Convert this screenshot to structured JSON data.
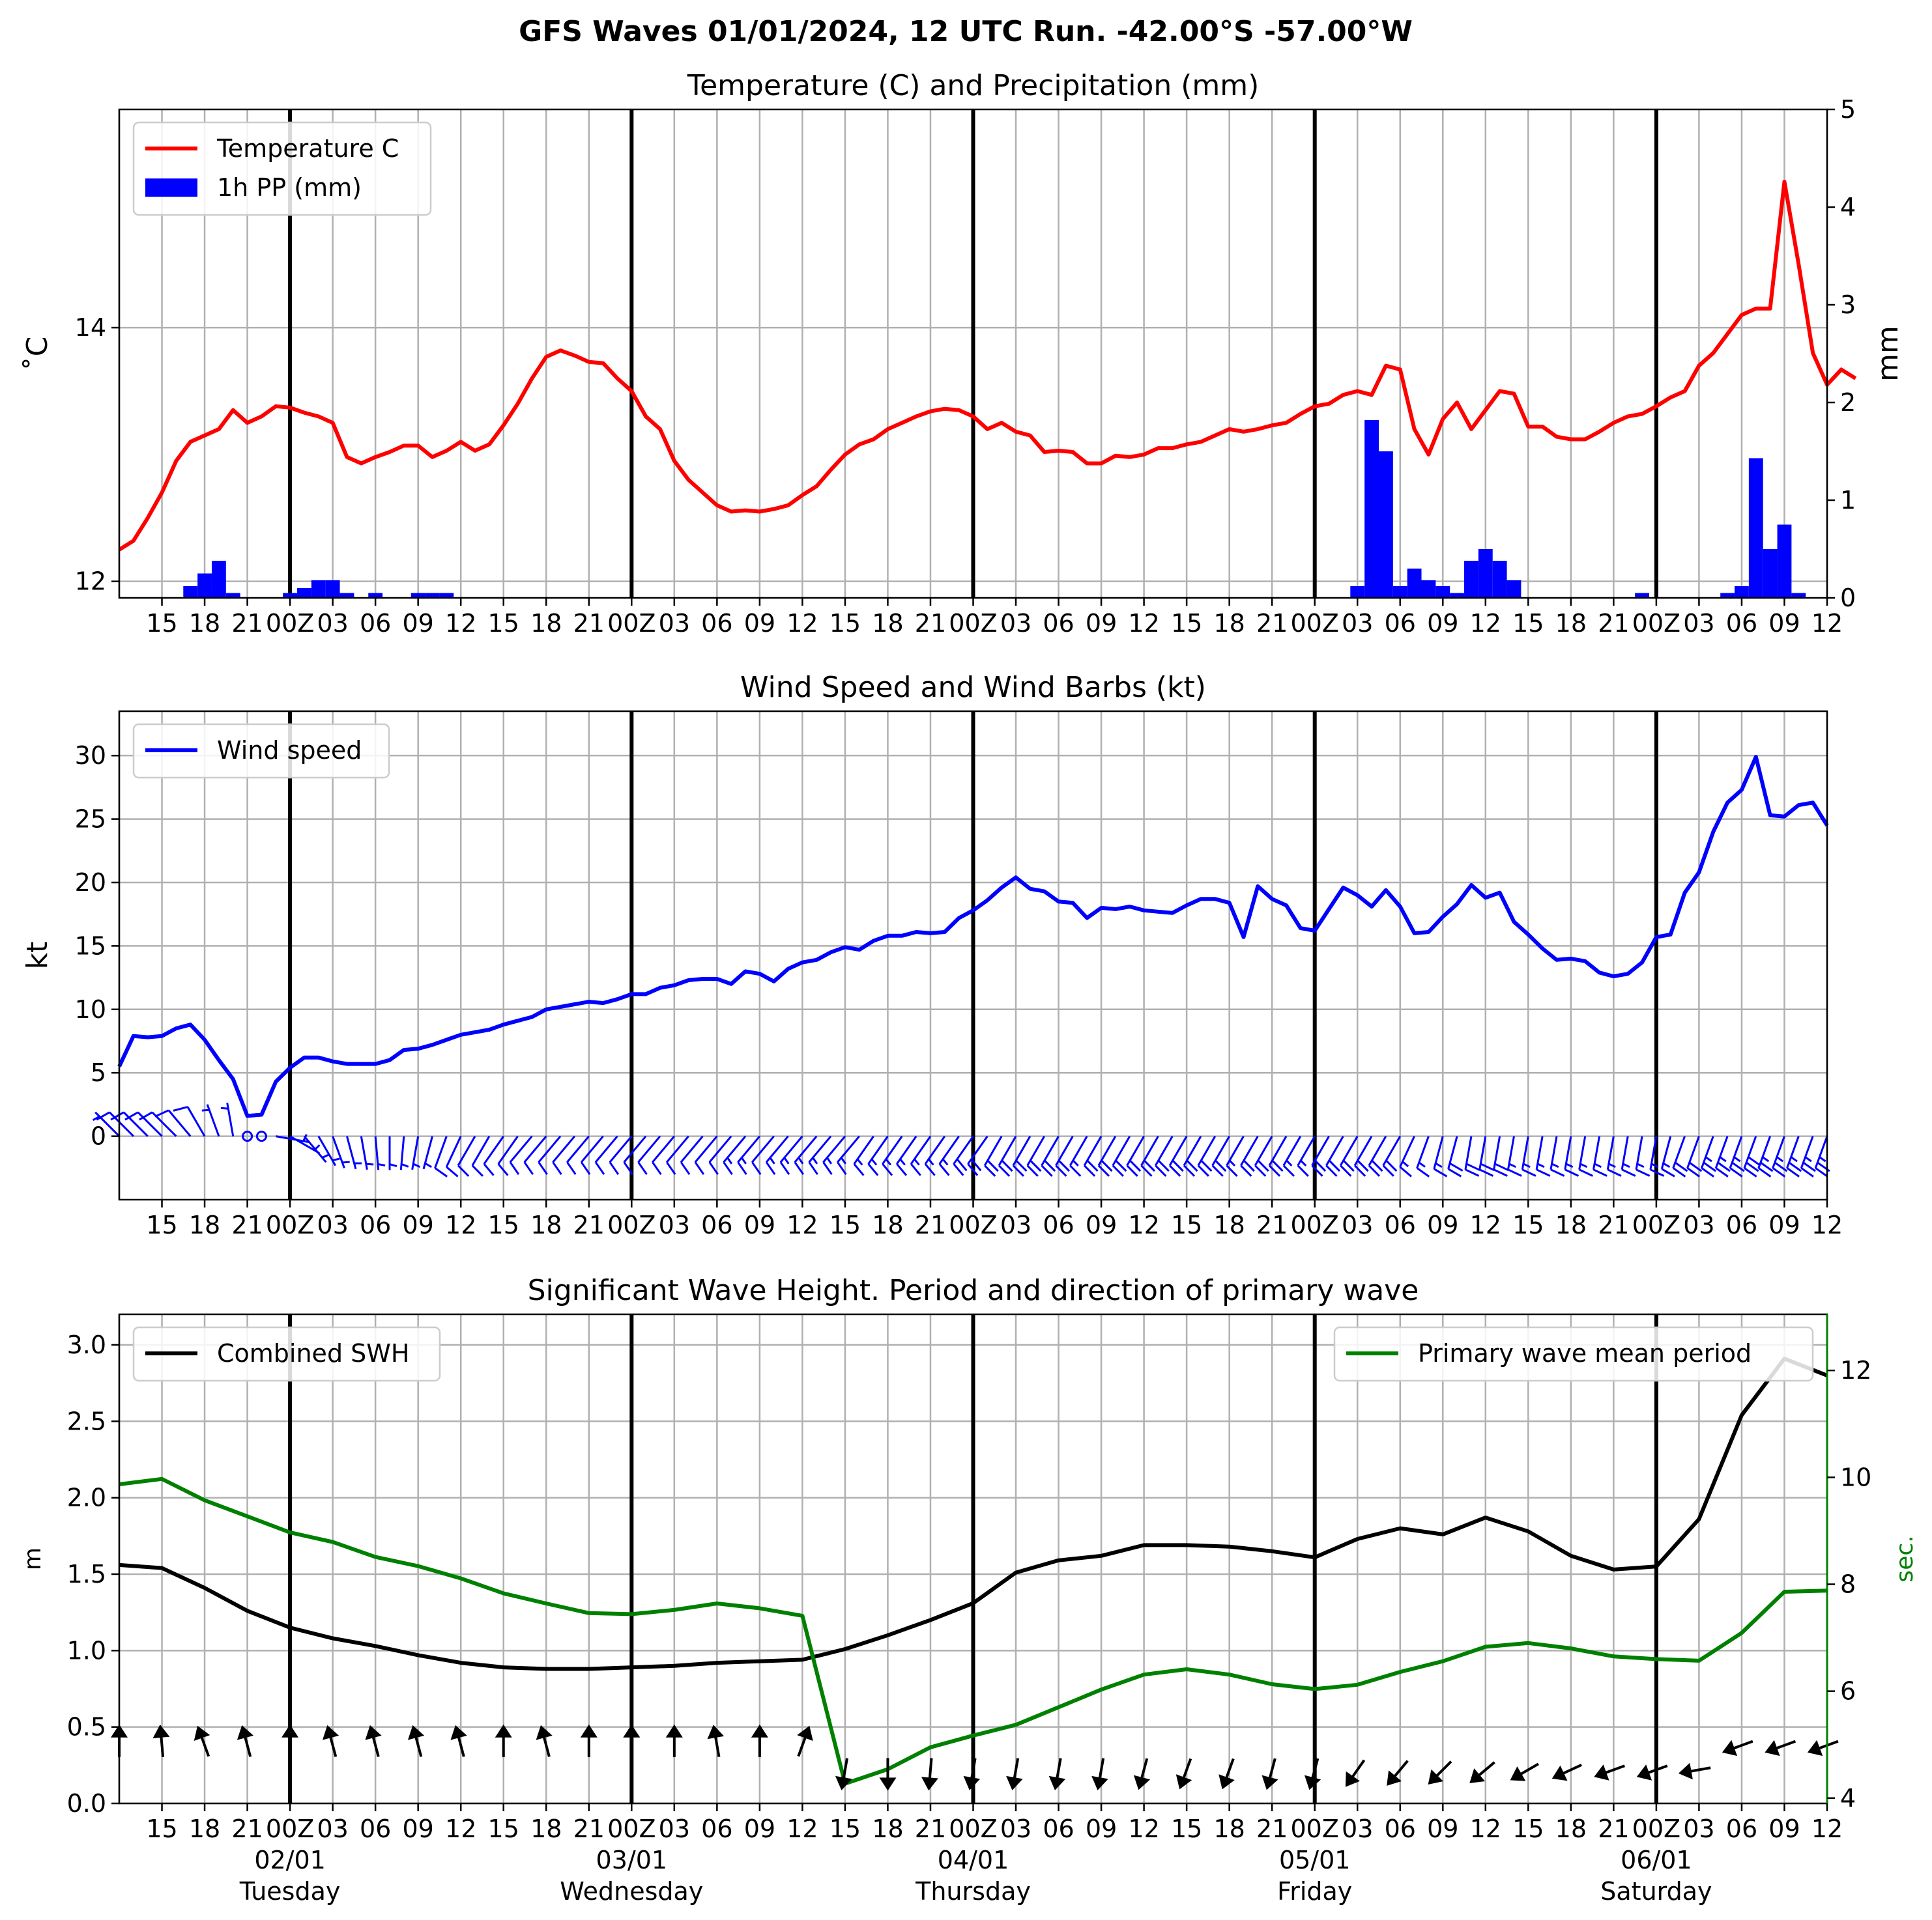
{
  "figure": {
    "suptitle": "GFS Waves 01/01/2024, 12 UTC Run. -42.00°S -57.00°W"
  },
  "colors": {
    "temp": "#ff0000",
    "precip": "#0000ff",
    "wind": "#0000ff",
    "swh": "#000000",
    "period": "#008000",
    "grid": "#b0b0b0",
    "day_line": "#000000"
  },
  "time_axis": {
    "start": "2024-01-01 12:00 UTC",
    "end": "2024-01-06 12:00 UTC",
    "tick_hours": [
      15,
      18,
      21,
      0,
      3,
      6,
      9,
      12
    ],
    "tick_labels": [
      "15",
      "18",
      "21",
      "00Z",
      "03",
      "06",
      "09",
      "12",
      "15",
      "18",
      "21",
      "00Z",
      "03",
      "06",
      "09",
      "12",
      "15",
      "18",
      "21",
      "00Z",
      "03",
      "06",
      "09",
      "12",
      "15",
      "18",
      "21",
      "00Z",
      "03",
      "06",
      "09",
      "12",
      "15",
      "18",
      "21",
      "00Z",
      "03",
      "06",
      "09",
      "12"
    ],
    "day_labels": [
      {
        "date": "02/01",
        "weekday": "Tuesday"
      },
      {
        "date": "03/01",
        "weekday": "Wednesday"
      },
      {
        "date": "04/01",
        "weekday": "Thursday"
      },
      {
        "date": "05/01",
        "weekday": "Friday"
      },
      {
        "date": "06/01",
        "weekday": "Saturday"
      }
    ]
  },
  "chart_data": [
    {
      "type": "line",
      "title": "Temperature (C) and Precipitation (mm)",
      "ylabel": "˚C",
      "y2label": "mm",
      "ylim": [
        11.87,
        15.72
      ],
      "y2lim": [
        0,
        5
      ],
      "yticks": [
        12,
        14
      ],
      "y2ticks": [
        0,
        1,
        2,
        3,
        4,
        5
      ],
      "grid": true,
      "legend_position": "top-left",
      "legend": [
        "Temperature C",
        "1h PP (mm)"
      ],
      "series": [
        {
          "name": "Temperature C",
          "x_step_hours": 1,
          "values": [
            12.25,
            12.32,
            12.5,
            12.7,
            12.95,
            13.1,
            13.15,
            13.2,
            13.35,
            13.25,
            13.3,
            13.38,
            13.37,
            13.33,
            13.3,
            13.25,
            12.98,
            12.93,
            12.98,
            13.02,
            13.07,
            13.07,
            12.98,
            13.03,
            13.1,
            13.03,
            13.08,
            13.23,
            13.4,
            13.6,
            13.77,
            13.82,
            13.78,
            13.73,
            13.72,
            13.6,
            13.5,
            13.3,
            13.2,
            12.95,
            12.8,
            12.7,
            12.6,
            12.55,
            12.56,
            12.55,
            12.57,
            12.6,
            12.68,
            12.75,
            12.88,
            13.0,
            13.08,
            13.12,
            13.2,
            13.25,
            13.3,
            13.34,
            13.36,
            13.35,
            13.3,
            13.2,
            13.25,
            13.18,
            13.15,
            13.02,
            13.03,
            13.02,
            12.93,
            12.93,
            12.99,
            12.98,
            13.0,
            13.05,
            13.05,
            13.08,
            13.1,
            13.15,
            13.2,
            13.18,
            13.2,
            13.23,
            13.25,
            13.32,
            13.38,
            13.4,
            13.47,
            13.5,
            13.47,
            13.7,
            13.67,
            13.2,
            13.0,
            13.28,
            13.41,
            13.2,
            13.35,
            13.5,
            13.48,
            13.22,
            13.22,
            13.14,
            13.12,
            13.12,
            13.18,
            13.25,
            13.3,
            13.32,
            13.38,
            13.45,
            13.5,
            13.7,
            13.8,
            13.95,
            14.1,
            14.15,
            14.15,
            15.15,
            14.5,
            13.8,
            13.55,
            13.67,
            13.6
          ]
        },
        {
          "name": "1h PP (mm)",
          "type": "bar",
          "x_step_hours": 1,
          "values": [
            0,
            0,
            0,
            0,
            0,
            0.12,
            0.25,
            0.38,
            0.05,
            0,
            0,
            0,
            0.05,
            0.1,
            0.18,
            0.18,
            0.05,
            0,
            0.05,
            0,
            0,
            0.05,
            0.05,
            0.05,
            0,
            0,
            0,
            0,
            0,
            0,
            0,
            0,
            0,
            0,
            0,
            0,
            0,
            0,
            0,
            0,
            0,
            0,
            0,
            0,
            0,
            0,
            0,
            0,
            0,
            0,
            0,
            0,
            0,
            0,
            0,
            0,
            0,
            0,
            0,
            0,
            0,
            0,
            0,
            0,
            0,
            0,
            0,
            0,
            0,
            0,
            0,
            0,
            0,
            0,
            0,
            0,
            0,
            0,
            0,
            0,
            0,
            0,
            0,
            0,
            0,
            0,
            0,
            0.12,
            1.82,
            1.5,
            0.12,
            0.3,
            0.18,
            0.12,
            0.05,
            0.38,
            0.5,
            0.38,
            0.18,
            0,
            0,
            0,
            0,
            0,
            0,
            0,
            0,
            0.05,
            0,
            0,
            0,
            0,
            0,
            0.05,
            0.12,
            1.43,
            0.5,
            0.75,
            0.05,
            0,
            0,
            0
          ]
        }
      ]
    },
    {
      "type": "line",
      "title": "Wind Speed and Wind Barbs (kt)",
      "ylabel": "kt",
      "ylim": [
        -5,
        33.5
      ],
      "yticks": [
        0,
        5,
        10,
        15,
        20,
        25,
        30
      ],
      "grid": true,
      "legend_position": "top-left",
      "legend": [
        "Wind speed"
      ],
      "series": [
        {
          "name": "Wind speed",
          "x_step_hours": 1,
          "values": [
            5.5,
            7.9,
            7.8,
            7.9,
            8.5,
            8.8,
            7.6,
            6.0,
            4.5,
            1.6,
            1.7,
            4.3,
            5.4,
            6.2,
            6.2,
            5.9,
            5.7,
            5.7,
            5.7,
            6.0,
            6.8,
            6.9,
            7.2,
            7.6,
            8.0,
            8.2,
            8.4,
            8.8,
            9.1,
            9.4,
            10.0,
            10.2,
            10.4,
            10.6,
            10.5,
            10.8,
            11.2,
            11.2,
            11.7,
            11.9,
            12.3,
            12.4,
            12.4,
            12.0,
            13.0,
            12.8,
            12.2,
            13.2,
            13.7,
            13.9,
            14.5,
            14.9,
            14.7,
            15.4,
            15.8,
            15.8,
            16.1,
            16.0,
            16.1,
            17.2,
            17.8,
            18.6,
            19.6,
            20.4,
            19.5,
            19.3,
            18.5,
            18.4,
            17.2,
            18.0,
            17.9,
            18.1,
            17.8,
            17.7,
            17.6,
            18.2,
            18.7,
            18.7,
            18.4,
            15.7,
            19.7,
            18.7,
            18.2,
            16.4,
            16.2,
            17.9,
            19.6,
            19.0,
            18.1,
            19.4,
            18.1,
            16.0,
            16.1,
            17.3,
            18.3,
            19.8,
            18.8,
            19.2,
            16.9,
            15.9,
            14.8,
            13.9,
            14.0,
            13.8,
            12.9,
            12.6,
            12.8,
            13.7,
            15.7,
            15.9,
            19.2,
            20.8,
            24.0,
            26.3,
            27.3,
            29.9,
            25.3,
            25.2,
            26.1,
            26.3,
            24.5
          ]
        }
      ],
      "barbs": {
        "direction_convention": "meteorological (from)",
        "x_step_hours": 1,
        "directions_deg": [
          315,
          315,
          315,
          315,
          315,
          320,
          330,
          340,
          350,
          60,
          80,
          100,
          120,
          140,
          150,
          160,
          165,
          170,
          175,
          180,
          185,
          190,
          195,
          200,
          205,
          210,
          210,
          215,
          215,
          220,
          220,
          220,
          220,
          220,
          220,
          220,
          220,
          220,
          220,
          220,
          220,
          220,
          220,
          220,
          220,
          220,
          220,
          220,
          220,
          220,
          220,
          220,
          220,
          215,
          215,
          215,
          215,
          215,
          215,
          215,
          215,
          215,
          210,
          210,
          210,
          210,
          210,
          210,
          210,
          210,
          210,
          210,
          210,
          210,
          210,
          210,
          210,
          210,
          210,
          210,
          210,
          210,
          210,
          210,
          210,
          210,
          210,
          210,
          210,
          210,
          210,
          205,
          200,
          195,
          195,
          190,
          190,
          190,
          190,
          190,
          190,
          190,
          190,
          190,
          190,
          190,
          190,
          190,
          190,
          195,
          200,
          200,
          200,
          200,
          200,
          200,
          200,
          200,
          200,
          200,
          200
        ],
        "speeds_kt": "same as Wind speed"
      }
    },
    {
      "type": "line",
      "title": "Significant Wave Height. Period and direction of primary wave",
      "ylabel": "m",
      "y2label": "sec.",
      "ylim": [
        0,
        3.2
      ],
      "y2lim": [
        3.9,
        13.05
      ],
      "yticks": [
        0.0,
        0.5,
        1.0,
        1.5,
        2.0,
        2.5,
        3.0
      ],
      "y2ticks": [
        4,
        6,
        8,
        10,
        12
      ],
      "grid": true,
      "legend_position": "top-left / top-right",
      "legend": [
        "Combined SWH",
        "Primary wave mean period"
      ],
      "series": [
        {
          "name": "Combined SWH",
          "axis": "left",
          "x_step_hours": 3,
          "values": [
            1.56,
            1.54,
            1.41,
            1.26,
            1.15,
            1.08,
            1.03,
            0.97,
            0.92,
            0.89,
            0.88,
            0.88,
            0.89,
            0.9,
            0.92,
            0.93,
            0.94,
            1.01,
            1.1,
            1.2,
            1.31,
            1.51,
            1.59,
            1.62,
            1.69,
            1.69,
            1.68,
            1.65,
            1.61,
            1.73,
            1.8,
            1.76,
            1.87,
            1.78,
            1.62,
            1.53,
            1.55,
            1.86,
            2.54,
            2.91,
            2.8
          ]
        },
        {
          "name": "Primary wave mean period",
          "axis": "right",
          "x_step_hours": 3,
          "values": [
            9.87,
            9.97,
            9.57,
            9.27,
            8.97,
            8.79,
            8.51,
            8.34,
            8.11,
            7.83,
            7.64,
            7.46,
            7.44,
            7.52,
            7.64,
            7.55,
            7.41,
            4.27,
            4.54,
            4.95,
            5.17,
            5.37,
            5.7,
            6.03,
            6.31,
            6.41,
            6.31,
            6.13,
            6.04,
            6.12,
            6.36,
            6.56,
            6.83,
            6.9,
            6.8,
            6.65,
            6.6,
            6.57,
            7.09,
            7.86,
            7.88
          ]
        }
      ],
      "direction_arrows": {
        "x_step_hours": 3,
        "directions_deg_to": [
          0,
          355,
          340,
          345,
          0,
          345,
          345,
          345,
          345,
          0,
          345,
          0,
          0,
          0,
          350,
          0,
          20,
          190,
          180,
          185,
          190,
          190,
          190,
          190,
          195,
          200,
          200,
          195,
          195,
          215,
          220,
          225,
          230,
          240,
          245,
          250,
          250,
          260,
          250,
          250,
          250
        ]
      }
    }
  ]
}
